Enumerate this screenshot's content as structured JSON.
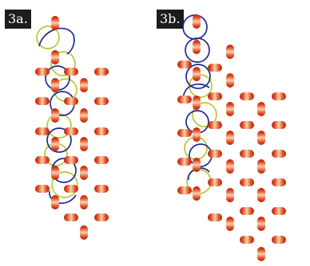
{
  "figure": {
    "labels": {
      "a": "3a.",
      "b": "3b."
    },
    "colors": {
      "background": "#ffffff",
      "label_background": "#1c1c1c",
      "label_text": "#ffffff",
      "bead_light": "#fbd0b0",
      "bead_mid": "#ef6a2e",
      "bead_dark": "#c52a12",
      "thread_blue": "#1f2d8f",
      "thread_green": "#b8c83a"
    },
    "icons": [
      "bead-icon",
      "thread-path-icon"
    ]
  }
}
